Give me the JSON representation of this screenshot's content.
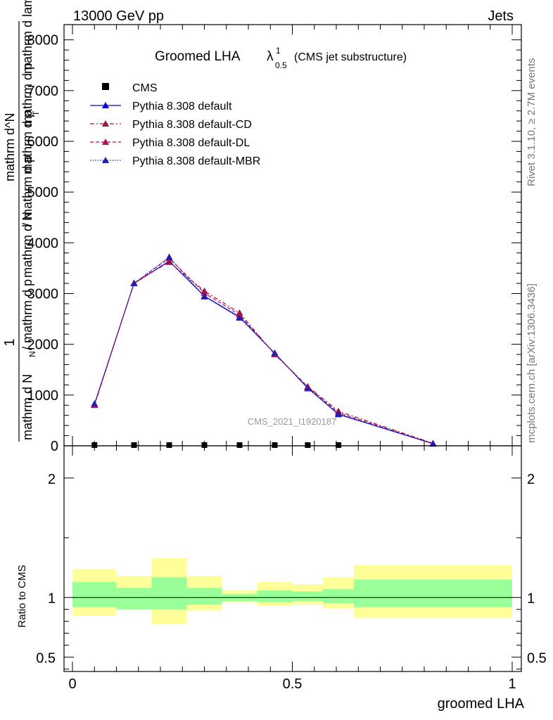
{
  "header": {
    "left": "13000 GeV pp",
    "right": "Jets"
  },
  "title": {
    "main": "Groomed LHA",
    "lambda": "λ",
    "superscript": "1",
    "subscript": "0.5",
    "suffix": "(CMS jet substructure)"
  },
  "side_labels": {
    "rivet": "Rivet 3.1.10, ≥ 2.7M events",
    "mcplots": "mcplots.cern.ch [arXiv:1306.3436]"
  },
  "watermark": "CMS_2021_I1920187",
  "colors": {
    "cms": "#000000",
    "default": "#0000e0",
    "default_cd": "#a0103a",
    "default_dl": "#b0105a",
    "default_mbr": "#2020b0",
    "band_inner": "#99ff99",
    "band_outer": "#ffff99"
  },
  "chart_data": [
    {
      "type": "line",
      "panel": "main",
      "ylabel": "1 / mathrm d N / mathrm d N_ / mathrm d p_mathrm d p_T mathrm d lambda / mathrm d^N / mathrm d p_T mathrm d lambda",
      "ylabel_parts": {
        "numerator_1": "1",
        "denominator_1": "mathrm d N",
        "denominator_2": "/ mathrm d p",
        "denominator_3": "mathrm d N",
        "denominator_4": "/ mathrm d p",
        "denominator_5": "mathrm d p",
        "sub_N": "N",
        "sub_T": "T",
        "numerator_2": "mathrm d^N",
        "numerator_3": "mathrm d p",
        "numerator_4": "mathrm d lambda",
        "numerator_5": "mathrm d lambda"
      },
      "xlim": [
        0,
        1
      ],
      "ylim": [
        0,
        8300
      ],
      "yticks": [
        0,
        1000,
        2000,
        3000,
        4000,
        5000,
        6000,
        7000,
        8000
      ],
      "ytick_labels": [
        "0",
        "1000",
        "2000",
        "3000",
        "4000",
        "5000",
        "6000",
        "7000",
        "8000"
      ],
      "legend": {
        "position": "top-left",
        "entries": [
          {
            "label": "CMS",
            "style": "square",
            "color_key": "cms"
          },
          {
            "label": "Pythia 8.308 default",
            "style": "solid",
            "color_key": "default"
          },
          {
            "label": "Pythia 8.308 default-CD",
            "style": "dashdot",
            "color_key": "default_cd"
          },
          {
            "label": "Pythia 8.308 default-DL",
            "style": "dashed",
            "color_key": "default_dl"
          },
          {
            "label": "Pythia 8.308 default-MBR",
            "style": "dotted",
            "color_key": "default_mbr"
          }
        ]
      },
      "cms_x": [
        0.05,
        0.14,
        0.22,
        0.3,
        0.38,
        0.46,
        0.535,
        0.605
      ],
      "cms_y": [
        0,
        0,
        0,
        0,
        0,
        0,
        0,
        0
      ],
      "x": [
        0.05,
        0.14,
        0.22,
        0.3,
        0.38,
        0.46,
        0.535,
        0.605,
        0.82
      ],
      "series": [
        {
          "name": "Pythia 8.308 default",
          "color_key": "default",
          "dash": "",
          "values": [
            820,
            3200,
            3640,
            2950,
            2540,
            1820,
            1140,
            620,
            40
          ]
        },
        {
          "name": "Pythia 8.308 default-CD",
          "color_key": "default_cd",
          "dash": "6 3 2 3",
          "values": [
            800,
            3210,
            3620,
            3050,
            2620,
            1800,
            1170,
            680,
            50
          ]
        },
        {
          "name": "Pythia 8.308 default-DL",
          "color_key": "default_dl",
          "dash": "5 3",
          "values": [
            810,
            3200,
            3700,
            3010,
            2580,
            1810,
            1160,
            650,
            45
          ]
        },
        {
          "name": "Pythia 8.308 default-MBR",
          "color_key": "default_mbr",
          "dash": "1.5 2",
          "values": [
            830,
            3200,
            3720,
            2940,
            2520,
            1830,
            1130,
            630,
            40
          ]
        }
      ]
    },
    {
      "type": "area",
      "panel": "ratio",
      "xlabel": "groomed LHA",
      "ylabel": "Ratio to CMS",
      "xlim": [
        0,
        1
      ],
      "ylim": [
        0.38,
        2.27
      ],
      "yticks": [
        0.5,
        1,
        2
      ],
      "ytick_labels": [
        "0.5",
        "1",
        "2"
      ],
      "xticks": [
        0,
        0.5,
        1
      ],
      "xtick_labels": [
        "0",
        "0.5",
        "1"
      ],
      "reference": 1,
      "bins": [
        {
          "x0": 0.0,
          "x1": 0.1,
          "inner": [
            0.92,
            1.13
          ],
          "outer": [
            0.85,
            1.24
          ]
        },
        {
          "x0": 0.1,
          "x1": 0.18,
          "inner": [
            0.9,
            1.08
          ],
          "outer": [
            0.9,
            1.18
          ]
        },
        {
          "x0": 0.18,
          "x1": 0.26,
          "inner": [
            0.9,
            1.17
          ],
          "outer": [
            0.78,
            1.33
          ]
        },
        {
          "x0": 0.26,
          "x1": 0.34,
          "inner": [
            0.94,
            1.08
          ],
          "outer": [
            0.89,
            1.18
          ]
        },
        {
          "x0": 0.34,
          "x1": 0.42,
          "inner": [
            0.97,
            1.03
          ],
          "outer": [
            0.96,
            1.06
          ]
        },
        {
          "x0": 0.42,
          "x1": 0.5,
          "inner": [
            0.96,
            1.06
          ],
          "outer": [
            0.93,
            1.13
          ]
        },
        {
          "x0": 0.5,
          "x1": 0.57,
          "inner": [
            0.97,
            1.05
          ],
          "outer": [
            0.94,
            1.11
          ]
        },
        {
          "x0": 0.57,
          "x1": 0.64,
          "inner": [
            0.95,
            1.07
          ],
          "outer": [
            0.91,
            1.17
          ]
        },
        {
          "x0": 0.64,
          "x1": 1.0,
          "inner": [
            0.92,
            1.15
          ],
          "outer": [
            0.83,
            1.27
          ]
        }
      ]
    }
  ]
}
